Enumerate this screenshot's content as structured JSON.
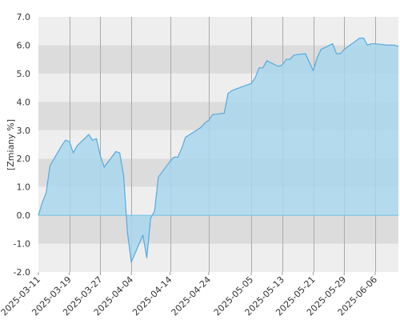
{
  "chart_data": {
    "type": "area",
    "ylabel": "[Zmiany %]",
    "ylim": [
      -2.0,
      7.0
    ],
    "yticks": [
      "7.0",
      "6.0",
      "5.0",
      "4.0",
      "3.0",
      "2.0",
      "1.0",
      "0.0",
      "-1.0",
      "-2.0"
    ],
    "xticks": [
      "2025-03-11",
      "2025-03-19",
      "2025-03-27",
      "2025-04-04",
      "2025-04-14",
      "2025-04-24",
      "2025-05-05",
      "2025-05-13",
      "2025-05-21",
      "2025-05-29",
      "2025-06-06"
    ],
    "grid": true,
    "series": [
      {
        "x": [
          "2025-03-11",
          "2025-03-12",
          "2025-03-13",
          "2025-03-14",
          "2025-03-17",
          "2025-03-18",
          "2025-03-19",
          "2025-03-20",
          "2025-03-21",
          "2025-03-24",
          "2025-03-25",
          "2025-03-26",
          "2025-03-27",
          "2025-03-28",
          "2025-03-31",
          "2025-04-01",
          "2025-04-02",
          "2025-04-03",
          "2025-04-04",
          "2025-04-07",
          "2025-04-08",
          "2025-04-09",
          "2025-04-10",
          "2025-04-11",
          "2025-04-14",
          "2025-04-15",
          "2025-04-16",
          "2025-04-17",
          "2025-04-18",
          "2025-04-22",
          "2025-04-23",
          "2025-04-24",
          "2025-04-25",
          "2025-04-28",
          "2025-04-29",
          "2025-04-30",
          "2025-05-02",
          "2025-05-05",
          "2025-05-06",
          "2025-05-07",
          "2025-05-08",
          "2025-05-09",
          "2025-05-12",
          "2025-05-13",
          "2025-05-14",
          "2025-05-15",
          "2025-05-16",
          "2025-05-19",
          "2025-05-20",
          "2025-05-21",
          "2025-05-22",
          "2025-05-23",
          "2025-05-26",
          "2025-05-27",
          "2025-05-28",
          "2025-05-29",
          "2025-05-30",
          "2025-06-02",
          "2025-06-03",
          "2025-06-04",
          "2025-06-05",
          "2025-06-06",
          "2025-06-09",
          "2025-06-10",
          "2025-06-11",
          "2025-06-12"
        ],
        "values": [
          0.0,
          0.45,
          0.8,
          1.75,
          2.45,
          2.65,
          2.6,
          2.2,
          2.45,
          2.85,
          2.65,
          2.7,
          2.1,
          1.7,
          2.25,
          2.2,
          1.4,
          -0.6,
          -1.65,
          -0.7,
          -1.5,
          -0.1,
          0.15,
          1.35,
          1.9,
          2.05,
          2.05,
          2.35,
          2.75,
          3.1,
          3.25,
          3.35,
          3.55,
          3.6,
          4.3,
          4.4,
          4.5,
          4.65,
          4.85,
          5.2,
          5.2,
          5.45,
          5.25,
          5.3,
          5.5,
          5.5,
          5.65,
          5.7,
          5.4,
          5.1,
          5.55,
          5.85,
          6.05,
          5.7,
          5.7,
          5.85,
          5.95,
          6.25,
          6.25,
          6.0,
          6.05,
          6.05,
          6.0,
          6.0,
          6.0,
          5.95
        ]
      }
    ],
    "colors": {
      "line": "#55a9e0",
      "fill": "#a9d7ec",
      "band_light": "#eeeeee",
      "band_dark": "#dcdcdc",
      "vgrid": "#aaaaaa",
      "zero_line": "#6fc0e6",
      "text": "#333333",
      "axis": "#999999"
    }
  }
}
